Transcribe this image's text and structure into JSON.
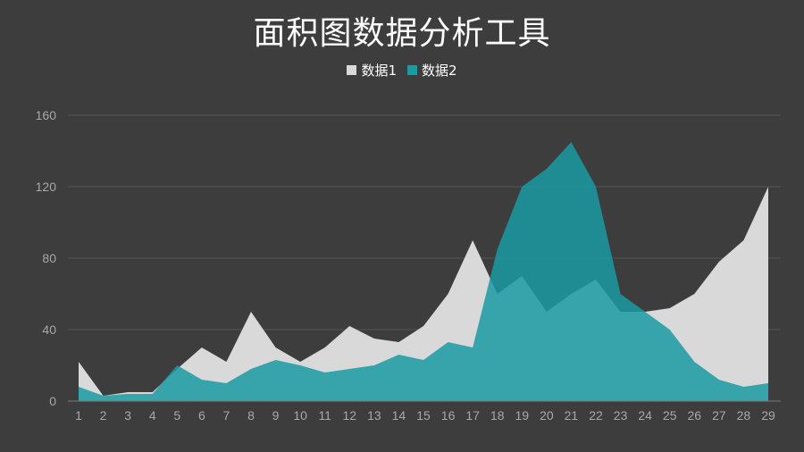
{
  "chart_data": {
    "type": "area",
    "title": "面积图数据分析工具",
    "xlabel": "",
    "ylabel": "",
    "ylim": [
      0,
      160
    ],
    "yticks": [
      0,
      40,
      80,
      120,
      160
    ],
    "grid": true,
    "legend_position": "top-center",
    "x": [
      "1",
      "2",
      "3",
      "4",
      "5",
      "6",
      "7",
      "8",
      "9",
      "10",
      "11",
      "12",
      "13",
      "14",
      "15",
      "16",
      "17",
      "18",
      "19",
      "20",
      "21",
      "22",
      "23",
      "24",
      "25",
      "26",
      "27",
      "28",
      "29"
    ],
    "series": [
      {
        "name": "数据1",
        "color": "#d9d9d9",
        "values": [
          22,
          3,
          5,
          5,
          18,
          30,
          22,
          50,
          30,
          22,
          30,
          42,
          35,
          33,
          42,
          60,
          90,
          60,
          70,
          50,
          60,
          68,
          50,
          50,
          52,
          60,
          78,
          90,
          120
        ]
      },
      {
        "name": "数据2",
        "color": "#1a9aa2",
        "values": [
          8,
          3,
          4,
          4,
          20,
          12,
          10,
          18,
          23,
          20,
          16,
          18,
          20,
          26,
          23,
          33,
          30,
          85,
          120,
          130,
          145,
          120,
          60,
          50,
          40,
          22,
          12,
          8,
          10
        ]
      }
    ]
  }
}
